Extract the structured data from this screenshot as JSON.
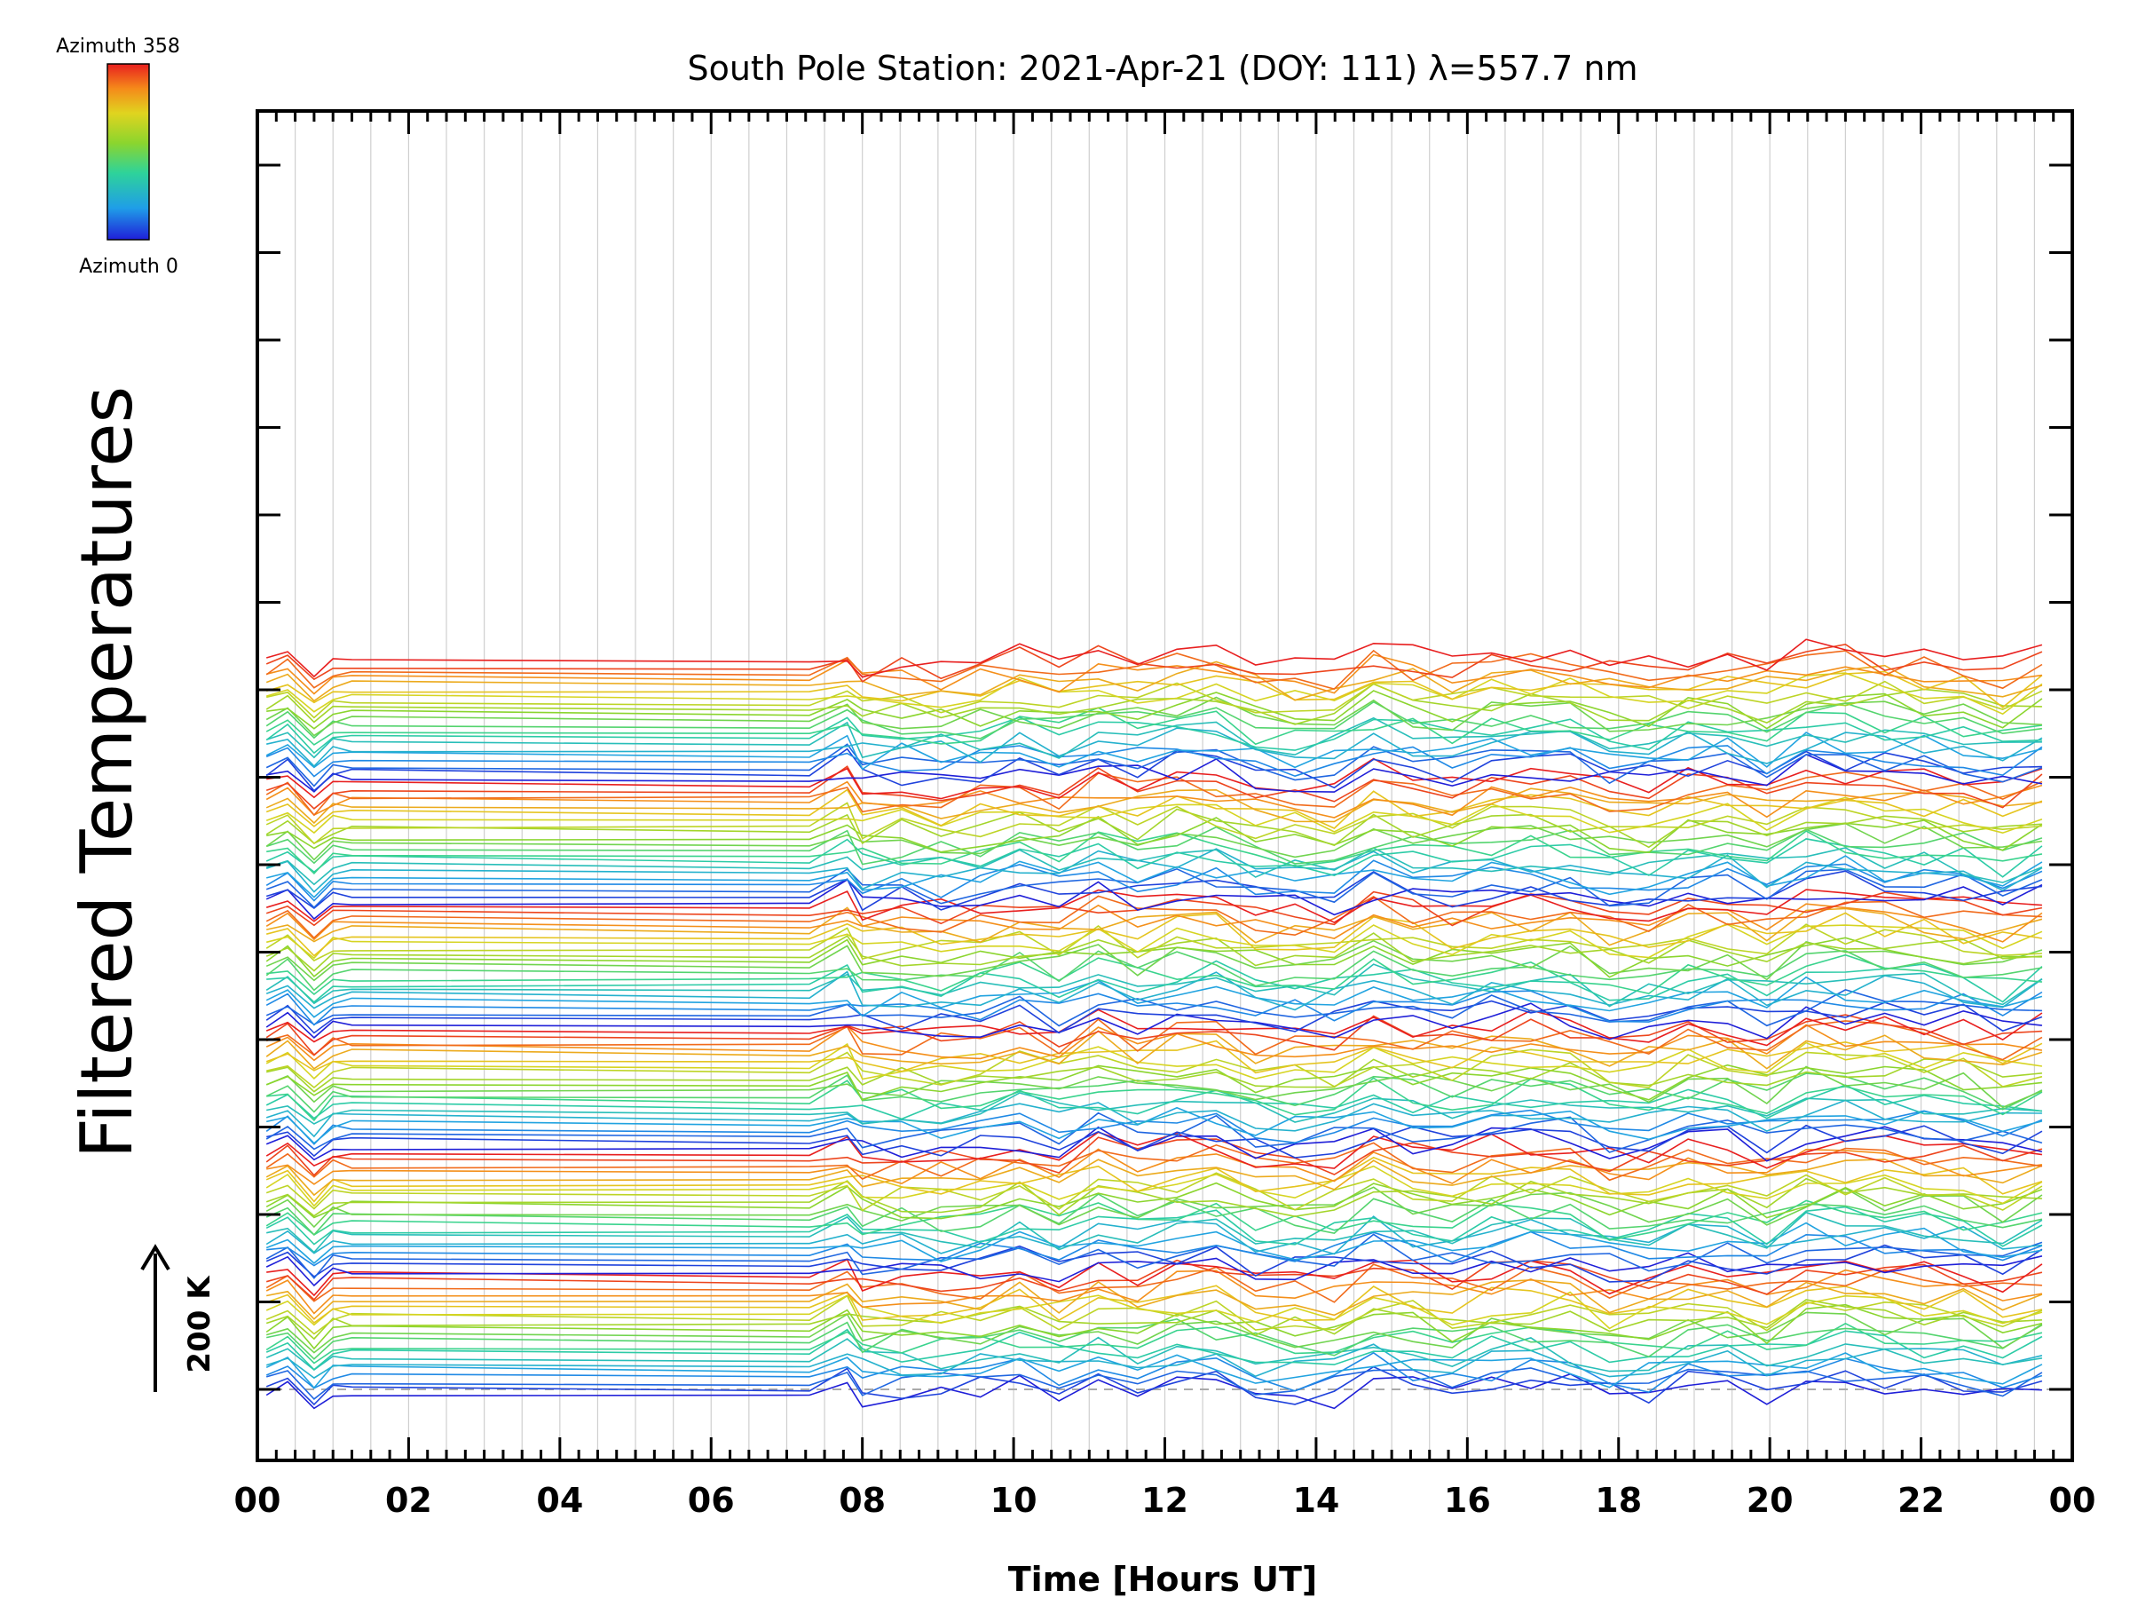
{
  "chart_data": {
    "type": "line",
    "title": "South Pole Station: 2021-Apr-21 (DOY: 111) λ=557.7 nm",
    "xlabel": "Time [Hours UT]",
    "ylabel": "Filtered Temperatures",
    "xlim": [
      0,
      24
    ],
    "x_ticks": [
      "00",
      "02",
      "04",
      "06",
      "08",
      "10",
      "12",
      "14",
      "16",
      "18",
      "20",
      "22",
      "00"
    ],
    "scale_bar": {
      "label": "200 K",
      "value_K": 200
    },
    "colorbar": {
      "top_label": "Azimuth 358",
      "bottom_label": "Azimuth 0",
      "colormap": "rainbow",
      "range": [
        0,
        358
      ]
    },
    "grid": "vertical",
    "legend": "top-left",
    "series_count": 126,
    "colors": {
      "axes": "#000000",
      "grid": "#c8c8c8",
      "baseline": "#aaaaaa"
    }
  }
}
